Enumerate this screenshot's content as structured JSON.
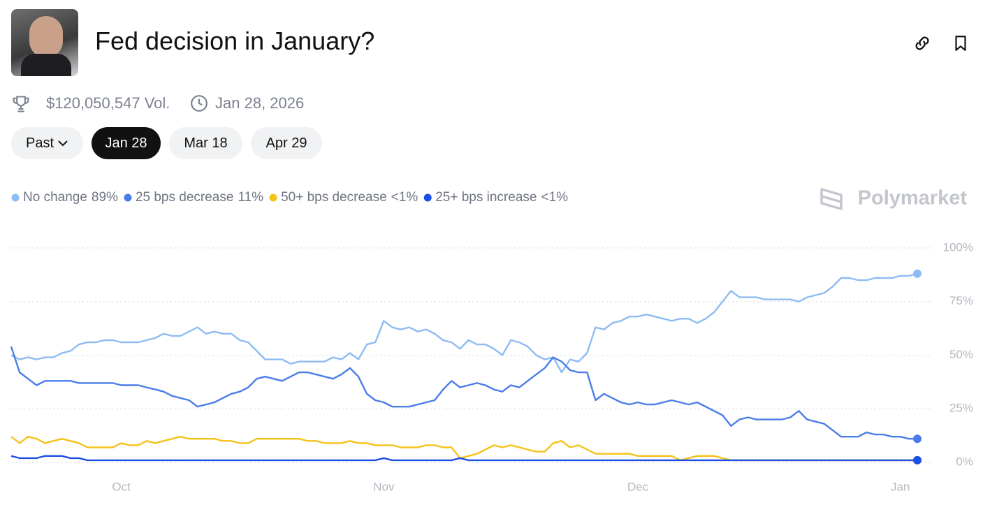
{
  "header": {
    "title": "Fed decision in January?",
    "volume": "$120,050,547 Vol.",
    "end_date": "Jan 28, 2026"
  },
  "tabs": [
    "Past",
    "Jan 28",
    "Mar 18",
    "Apr 29"
  ],
  "brand": "Polymarket",
  "chart_data": {
    "type": "line",
    "categories": [
      null,
      null,
      null,
      null,
      null,
      null,
      null,
      null,
      null,
      null,
      null,
      null,
      null,
      "Oct",
      null,
      null,
      null,
      null,
      null,
      null,
      null,
      null,
      null,
      null,
      null,
      null,
      null,
      null,
      null,
      null,
      null,
      null,
      null,
      null,
      null,
      null,
      null,
      null,
      null,
      null,
      null,
      null,
      null,
      null,
      "Nov",
      null,
      null,
      null,
      null,
      null,
      null,
      null,
      null,
      null,
      null,
      null,
      null,
      null,
      null,
      null,
      null,
      null,
      null,
      null,
      null,
      null,
      null,
      null,
      null,
      null,
      null,
      null,
      null,
      null,
      "Dec",
      null,
      null,
      null,
      null,
      null,
      null,
      null,
      null,
      null,
      null,
      null,
      null,
      null,
      null,
      null,
      null,
      null,
      null,
      null,
      null,
      null,
      null,
      null,
      null,
      null,
      null,
      null,
      null,
      null,
      null,
      "Jan",
      null,
      null
    ],
    "series": [
      {
        "name": "No change",
        "current": "89%",
        "color": "#8dbcf3",
        "values": [
          50,
          48,
          49,
          48,
          49,
          49,
          51,
          52,
          55,
          56,
          56,
          57,
          57,
          56,
          56,
          56,
          57,
          58,
          60,
          59,
          59,
          61,
          63,
          60,
          61,
          60,
          60,
          57,
          56,
          52,
          48,
          48,
          48,
          46,
          47,
          47,
          47,
          47,
          49,
          48,
          51,
          48,
          55,
          56,
          66,
          63,
          62,
          63,
          61,
          62,
          60,
          57,
          56,
          53,
          57,
          55,
          55,
          53,
          50,
          57,
          56,
          54,
          50,
          48,
          49,
          42,
          48,
          47,
          51,
          63,
          62,
          65,
          66,
          68,
          68,
          69,
          68,
          67,
          66,
          67,
          67,
          65,
          67,
          70,
          75,
          80,
          77,
          77,
          77,
          76,
          76,
          76,
          76,
          75,
          77,
          78,
          79,
          82,
          86,
          86,
          85,
          85,
          86,
          86,
          86,
          87,
          87,
          88
        ]
      },
      {
        "name": "25 bps decrease",
        "current": "11%",
        "color": "#4a7de9",
        "values": [
          54,
          42,
          39,
          36,
          38,
          38,
          38,
          38,
          37,
          37,
          37,
          37,
          37,
          36,
          36,
          36,
          35,
          34,
          33,
          31,
          30,
          29,
          26,
          27,
          28,
          30,
          32,
          33,
          35,
          39,
          40,
          39,
          38,
          40,
          42,
          42,
          41,
          40,
          39,
          41,
          44,
          40,
          32,
          29,
          28,
          26,
          26,
          26,
          27,
          28,
          29,
          34,
          38,
          35,
          36,
          37,
          36,
          34,
          33,
          36,
          35,
          38,
          41,
          44,
          49,
          47,
          43,
          42,
          42,
          29,
          32,
          30,
          28,
          27,
          28,
          27,
          27,
          28,
          29,
          28,
          27,
          28,
          26,
          24,
          22,
          17,
          20,
          21,
          20,
          20,
          20,
          20,
          21,
          24,
          20,
          19,
          18,
          15,
          12,
          12,
          12,
          14,
          13,
          13,
          12,
          12,
          11,
          11
        ]
      },
      {
        "name": "50+ bps decrease",
        "current": "<1%",
        "color": "#f5c21b",
        "values": [
          12,
          9,
          12,
          11,
          9,
          10,
          11,
          10,
          9,
          7,
          7,
          7,
          7,
          9,
          8,
          8,
          10,
          9,
          10,
          11,
          12,
          11,
          11,
          11,
          11,
          10,
          10,
          9,
          9,
          11,
          11,
          11,
          11,
          11,
          11,
          10,
          10,
          9,
          9,
          9,
          10,
          9,
          9,
          8,
          8,
          8,
          7,
          7,
          7,
          8,
          8,
          7,
          7,
          2,
          3,
          4,
          6,
          8,
          7,
          8,
          7,
          6,
          5,
          5,
          9,
          10,
          7,
          8,
          6,
          4,
          4,
          4,
          4,
          4,
          3,
          3,
          3,
          3,
          3,
          1,
          2,
          3,
          3,
          3,
          2,
          1,
          1,
          1,
          1,
          1,
          1,
          1,
          1,
          1,
          1,
          1,
          1,
          1,
          1,
          1,
          1,
          1,
          1,
          1,
          1,
          1,
          1,
          1
        ]
      },
      {
        "name": "25+ bps increase",
        "current": "<1%",
        "color": "#1c4fe6",
        "values": [
          3,
          2,
          2,
          2,
          3,
          3,
          3,
          2,
          2,
          1,
          1,
          1,
          1,
          1,
          1,
          1,
          1,
          1,
          1,
          1,
          1,
          1,
          1,
          1,
          1,
          1,
          1,
          1,
          1,
          1,
          1,
          1,
          1,
          1,
          1,
          1,
          1,
          1,
          1,
          1,
          1,
          1,
          1,
          1,
          2,
          1,
          1,
          1,
          1,
          1,
          1,
          1,
          1,
          2,
          1,
          1,
          1,
          1,
          1,
          1,
          1,
          1,
          1,
          1,
          1,
          1,
          1,
          1,
          1,
          1,
          1,
          1,
          1,
          1,
          1,
          1,
          1,
          1,
          1,
          1,
          1,
          1,
          1,
          1,
          1,
          1,
          1,
          1,
          1,
          1,
          1,
          1,
          1,
          1,
          1,
          1,
          1,
          1,
          1,
          1,
          1,
          1,
          1,
          1,
          1,
          1,
          1,
          1
        ]
      }
    ],
    "ylim": [
      0,
      100
    ],
    "yticks": [
      {
        "value": 0,
        "label": "0%"
      },
      {
        "value": 25,
        "label": "25%"
      },
      {
        "value": 50,
        "label": "50%"
      },
      {
        "value": 75,
        "label": "75%"
      },
      {
        "value": 100,
        "label": "100%"
      }
    ],
    "grid": true
  }
}
